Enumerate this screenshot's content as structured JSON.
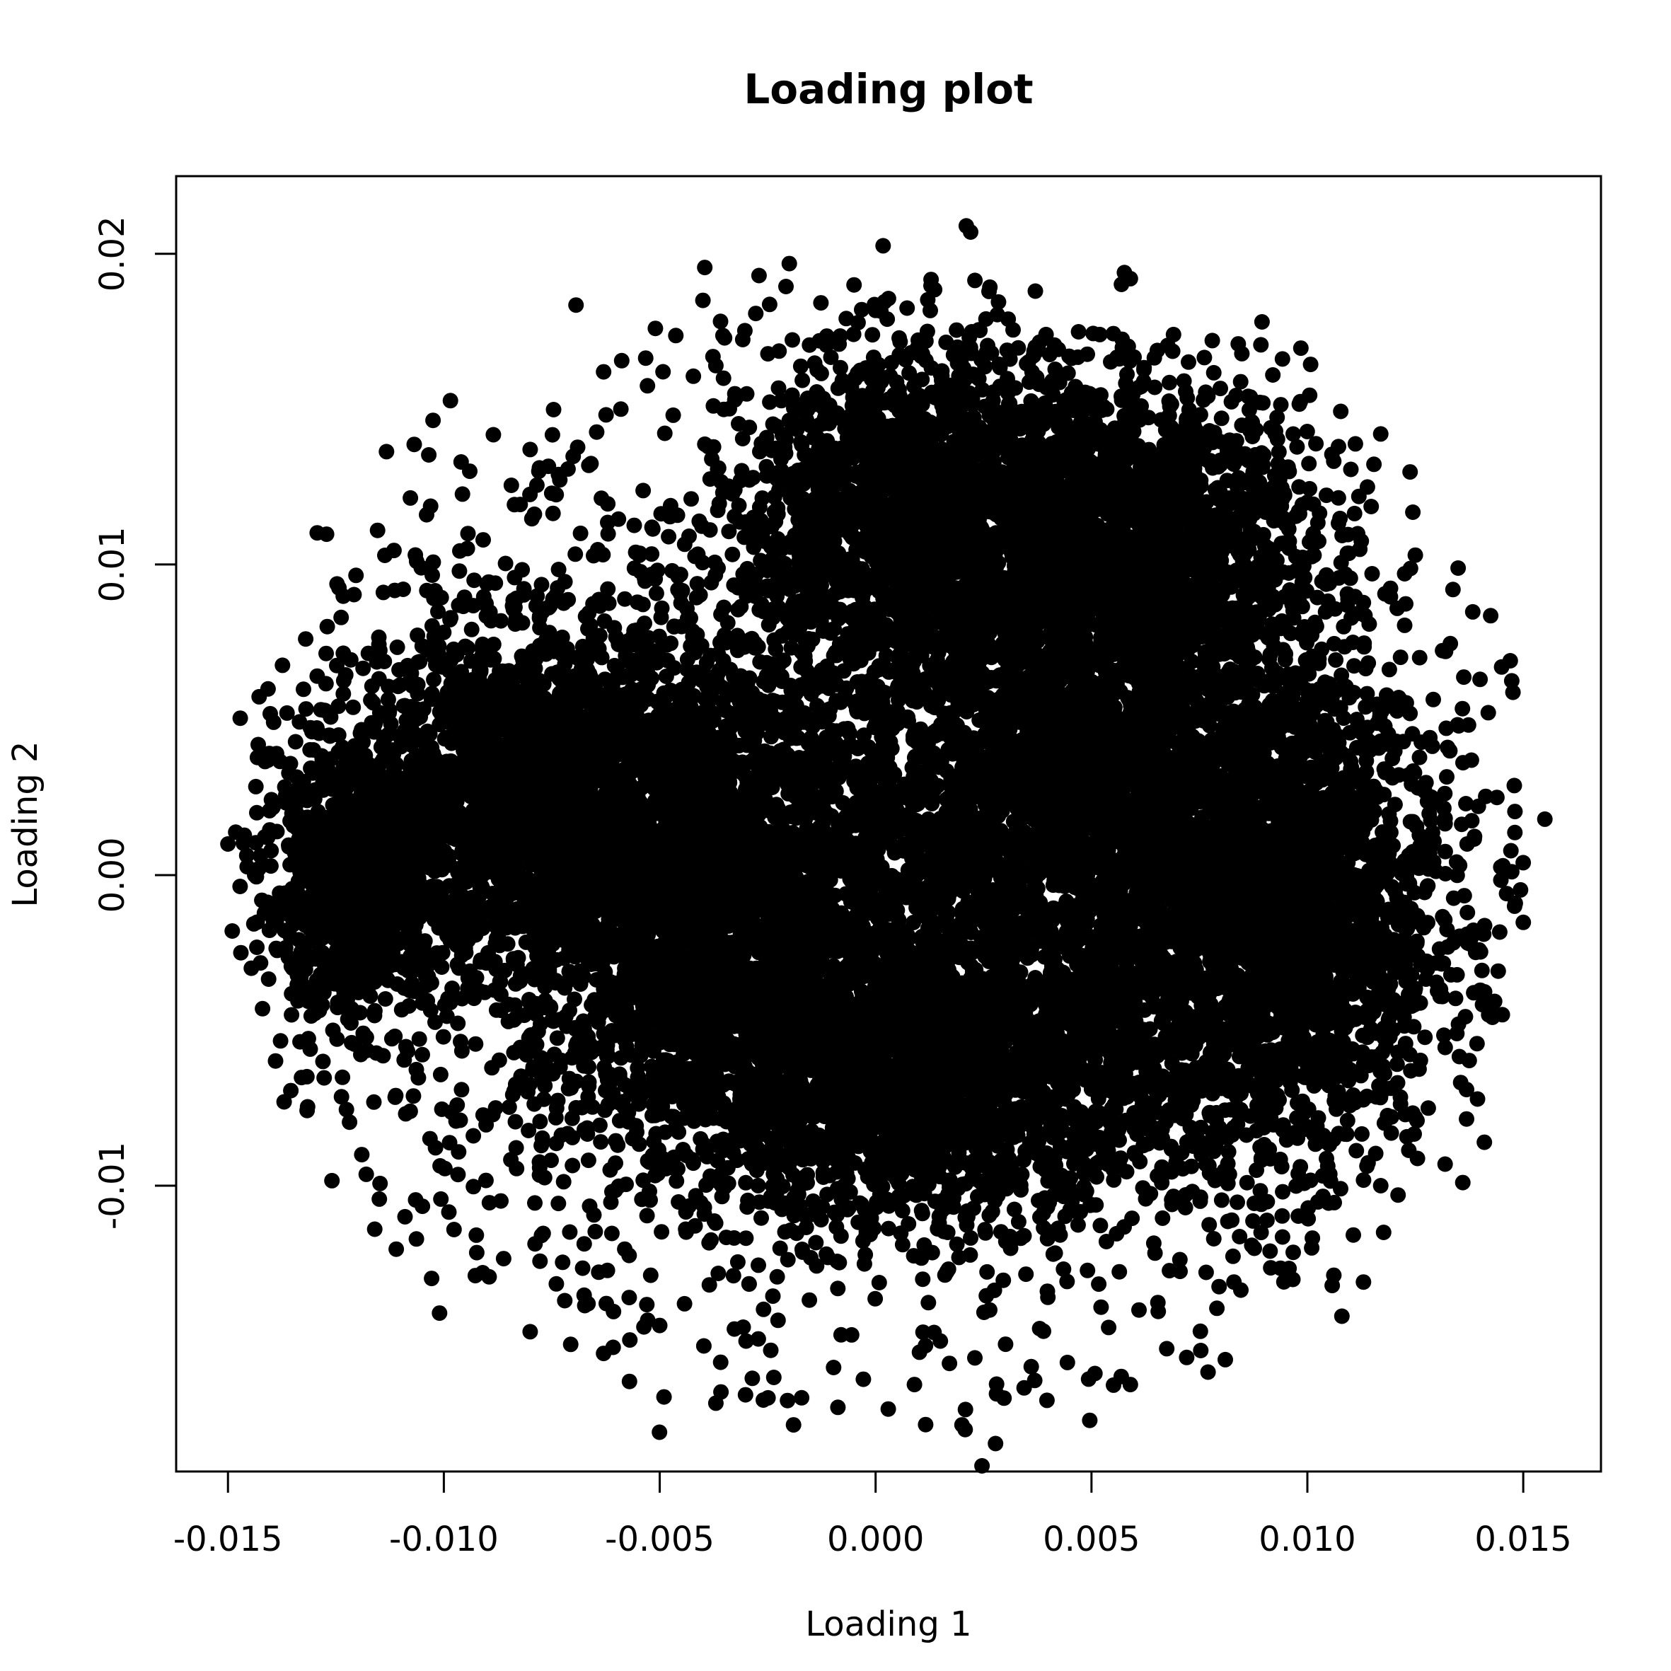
{
  "chart_data": {
    "type": "scatter",
    "title": "Loading plot",
    "xlabel": "Loading 1",
    "ylabel": "Loading 2",
    "xlim": [
      -0.0162,
      0.0168
    ],
    "ylim": [
      -0.0192,
      0.0225
    ],
    "x_ticks": [
      {
        "value": -0.015,
        "label": "-0.015"
      },
      {
        "value": -0.01,
        "label": "-0.010"
      },
      {
        "value": -0.005,
        "label": "-0.005"
      },
      {
        "value": 0.0,
        "label": "0.000"
      },
      {
        "value": 0.005,
        "label": "0.005"
      },
      {
        "value": 0.01,
        "label": "0.010"
      },
      {
        "value": 0.015,
        "label": "0.015"
      }
    ],
    "y_ticks": [
      {
        "value": -0.01,
        "label": "-0.01"
      },
      {
        "value": 0.0,
        "label": "0.00"
      },
      {
        "value": 0.01,
        "label": "0.01"
      },
      {
        "value": 0.02,
        "label": "0.02"
      }
    ],
    "marker": "filled-circle",
    "color": "#000000",
    "grid": false,
    "legend": "none",
    "points": [
      [
        0.0021,
        0.0209
      ],
      [
        0.0022,
        0.0207
      ],
      [
        0.0059,
        0.0192
      ],
      [
        -0.0027,
        0.0193
      ],
      [
        0.0155,
        0.0018
      ],
      [
        0.015,
        0.0004
      ],
      [
        0.0148,
        -0.001
      ],
      [
        0.0147,
        0.0069
      ],
      [
        0.0145,
        0.0067
      ],
      [
        0.014,
        0.0063
      ],
      [
        0.0136,
        -0.0099
      ],
      [
        0.0141,
        -0.0086
      ],
      [
        0.0142,
        -0.0045
      ],
      [
        0.0138,
        0.0037
      ],
      [
        0.0132,
        0.0072
      ],
      [
        -0.015,
        0.001
      ],
      [
        -0.0149,
        -0.0018
      ],
      [
        -0.0147,
        -0.0025
      ],
      [
        -0.0143,
        0.0042
      ],
      [
        -0.0142,
        -0.0043
      ],
      [
        -0.0137,
        -0.0073
      ],
      [
        -0.0132,
        0.0076
      ],
      [
        -0.0127,
        0.008
      ],
      [
        -0.0116,
        -0.0114
      ],
      [
        -0.0101,
        -0.0141
      ],
      [
        -0.0096,
        0.0133
      ],
      [
        -0.0094,
        0.013
      ],
      [
        -0.008,
        -0.0147
      ],
      [
        -0.0063,
        -0.0154
      ],
      [
        -0.0057,
        -0.0163
      ],
      [
        -0.0049,
        -0.0168
      ],
      [
        -0.0037,
        -0.017
      ],
      [
        -0.0026,
        -0.0169
      ],
      [
        -0.0019,
        -0.0177
      ],
      [
        0.0009,
        -0.0164
      ],
      [
        0.002,
        -0.0177
      ],
      [
        0.0028,
        -0.0167
      ],
      [
        0.0059,
        -0.0164
      ],
      [
        0.0077,
        -0.016
      ],
      [
        0.0081,
        -0.0156
      ],
      [
        0.0108,
        -0.0142
      ],
      [
        0.0113,
        -0.0131
      ],
      [
        0.0121,
        -0.0103
      ],
      [
        0.0117,
        0.0142
      ],
      [
        0.0125,
        0.0103
      ],
      [
        0.0092,
        0.0161
      ],
      [
        0.0084,
        0.0171
      ],
      [
        0.0069,
        0.0174
      ],
      [
        0.0037,
        0.0188
      ],
      [
        -0.0005,
        0.019
      ],
      [
        -0.004,
        0.0185
      ],
      [
        -0.0051,
        0.0176
      ],
      [
        -0.0063,
        0.0162
      ],
      [
        -0.008,
        0.0137
      ],
      [
        -0.0104,
        0.0116
      ],
      [
        -0.0114,
        0.0091
      ],
      [
        -0.0121,
        0.0054
      ],
      [
        -0.0128,
        0.003
      ],
      [
        -0.014,
        0.0014
      ],
      [
        -0.0135,
        -0.003
      ],
      [
        -0.0128,
        -0.006
      ],
      [
        -0.0119,
        -0.009
      ],
      [
        -0.0109,
        -0.011
      ],
      [
        -0.0091,
        -0.0128
      ],
      [
        -0.0072,
        -0.0137
      ],
      [
        -0.005,
        -0.0145
      ],
      [
        -0.003,
        -0.015
      ],
      [
        -0.0008,
        -0.0148
      ],
      [
        0.0015,
        -0.015
      ],
      [
        0.0038,
        -0.0146
      ],
      [
        0.0061,
        -0.014
      ],
      [
        0.0083,
        -0.0131
      ],
      [
        0.0101,
        -0.012
      ],
      [
        0.0117,
        -0.01
      ],
      [
        0.0128,
        -0.0075
      ],
      [
        0.0135,
        -0.0048
      ],
      [
        0.0138,
        -0.002
      ],
      [
        0.0137,
        0.001
      ],
      [
        0.0133,
        0.004
      ],
      [
        0.0126,
        0.007
      ],
      [
        0.0115,
        0.0097
      ],
      [
        0.01,
        0.012
      ],
      [
        0.0082,
        0.014
      ],
      [
        0.0061,
        0.0157
      ],
      [
        0.0037,
        0.017
      ],
      [
        0.0012,
        0.0175
      ],
      [
        -0.0013,
        0.0172
      ],
      [
        -0.0037,
        0.0164
      ],
      [
        -0.0059,
        0.015
      ],
      [
        -0.0078,
        0.013
      ]
    ],
    "dense_regions": [
      {
        "cx": -0.012,
        "cy": -0.0005,
        "rx": 0.0022,
        "ry": 0.004,
        "n": 900
      },
      {
        "cx": -0.008,
        "cy": 0.003,
        "rx": 0.004,
        "ry": 0.005,
        "n": 1500
      },
      {
        "cx": -0.004,
        "cy": -0.001,
        "rx": 0.004,
        "ry": 0.007,
        "n": 1800
      },
      {
        "cx": 0.001,
        "cy": 0.012,
        "rx": 0.004,
        "ry": 0.005,
        "n": 1500
      },
      {
        "cx": 0.005,
        "cy": 0.003,
        "rx": 0.006,
        "ry": 0.01,
        "n": 3000
      },
      {
        "cx": 0.0095,
        "cy": -0.0015,
        "rx": 0.0035,
        "ry": 0.0075,
        "n": 1800
      },
      {
        "cx": 0.001,
        "cy": -0.007,
        "rx": 0.006,
        "ry": 0.004,
        "n": 1600
      },
      {
        "cx": 0.006,
        "cy": 0.011,
        "rx": 0.004,
        "ry": 0.005,
        "n": 1200
      },
      {
        "cx": 0.0,
        "cy": 0.0,
        "rx": 0.014,
        "ry": 0.014,
        "n": 4000
      }
    ]
  }
}
